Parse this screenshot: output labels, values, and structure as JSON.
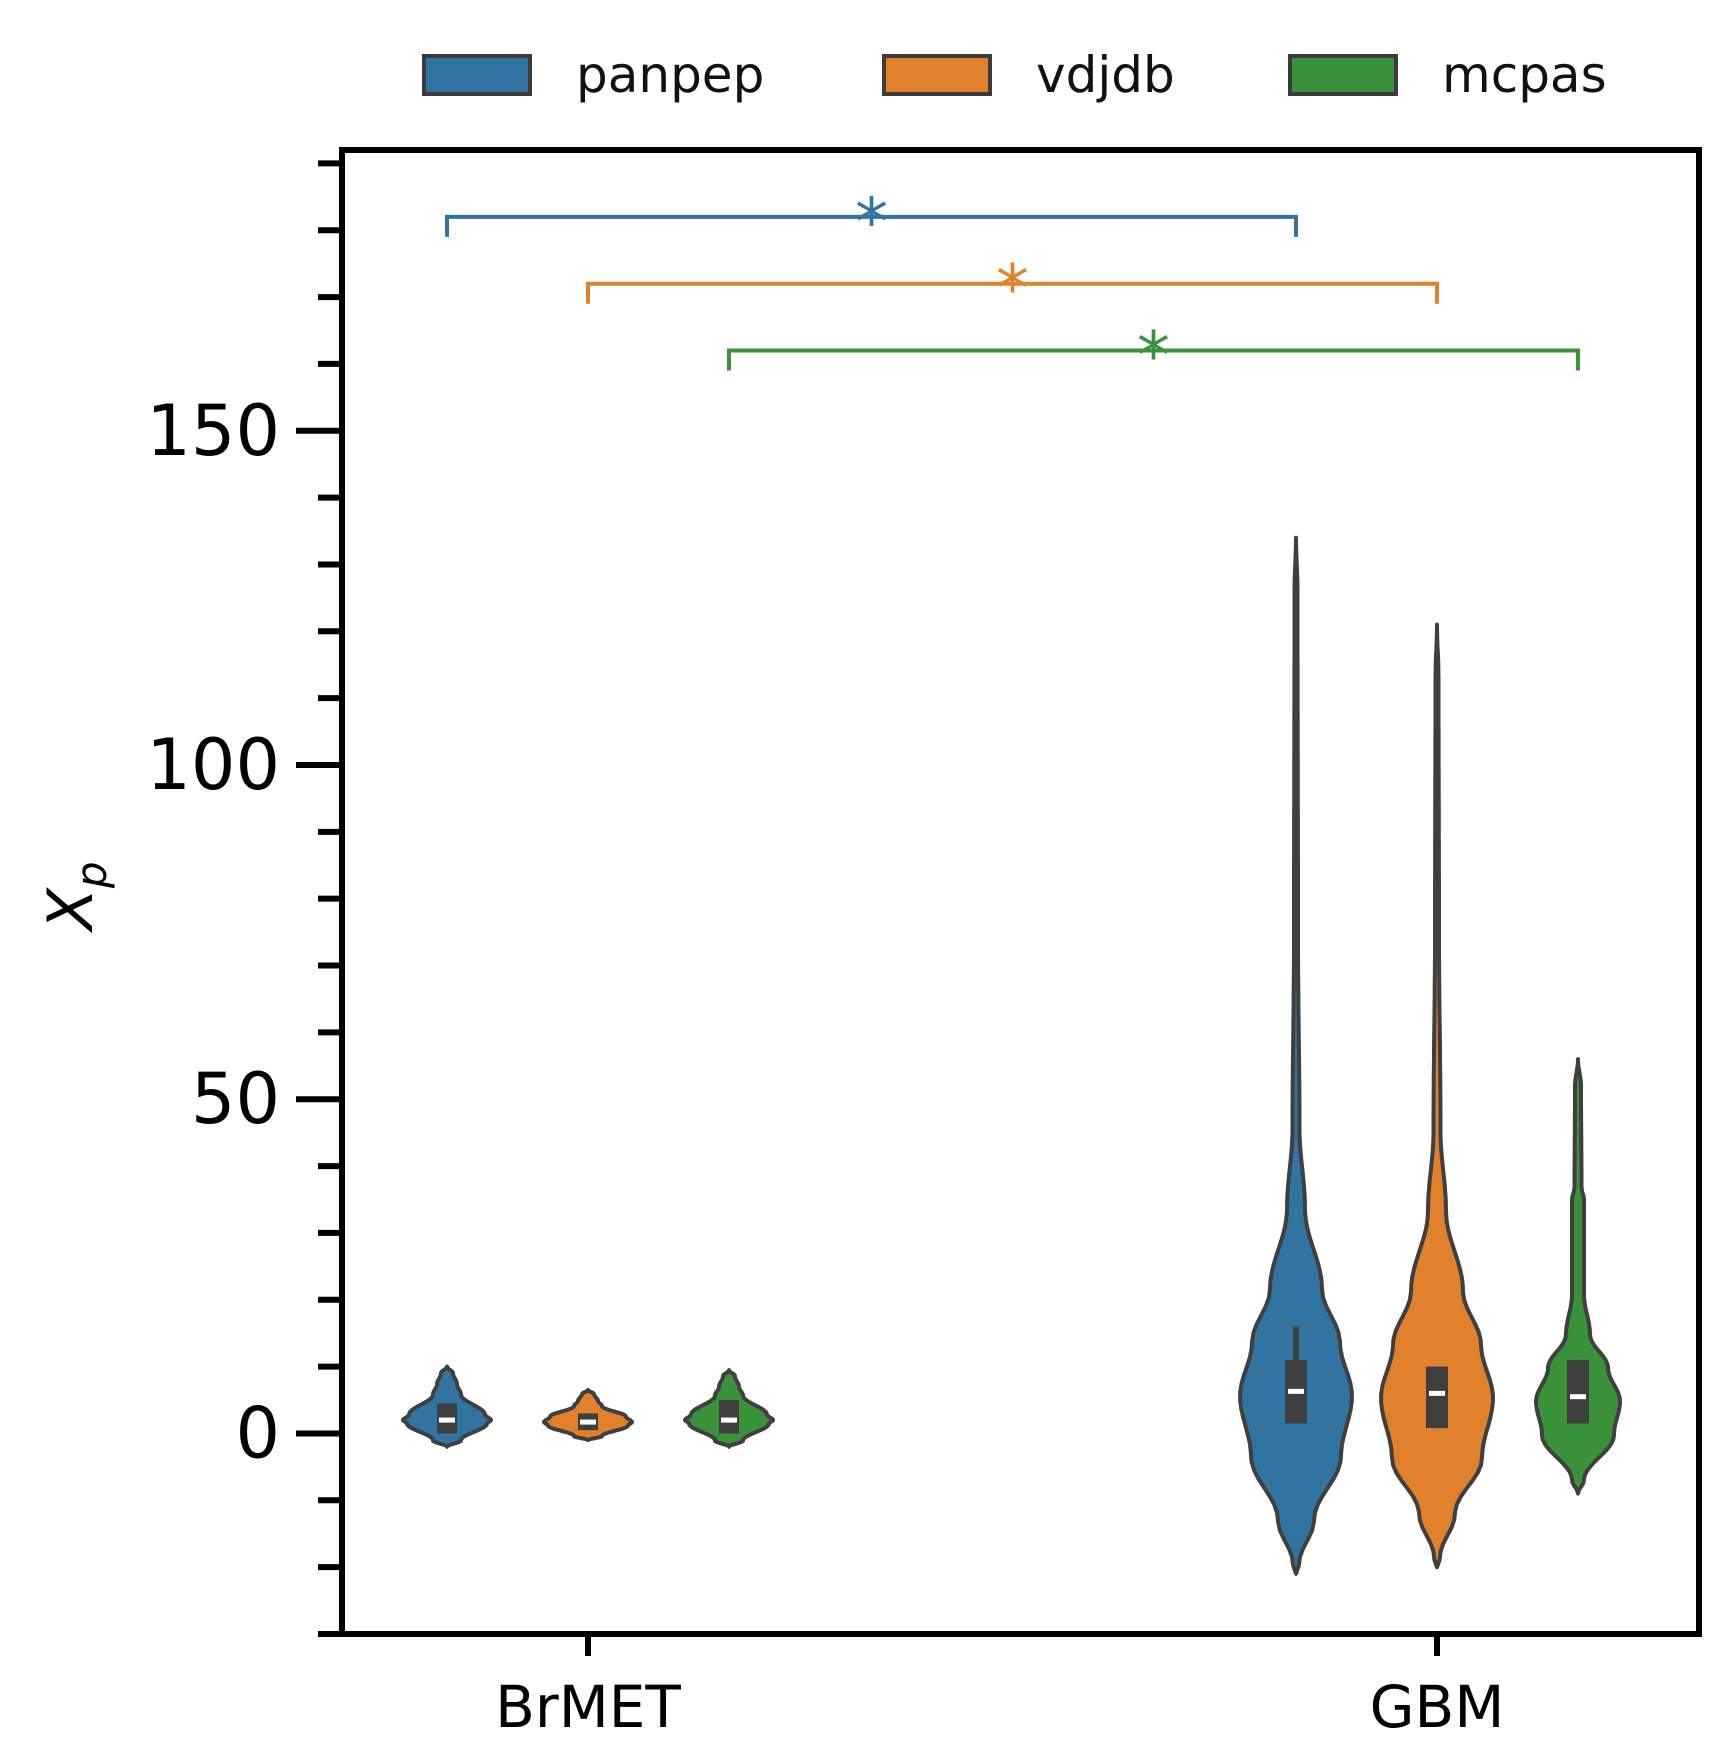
{
  "chart_data": {
    "type": "violin",
    "categories": [
      "BrMET",
      "GBM"
    ],
    "ylabel_main": "X",
    "ylabel_sub": "p",
    "ylim": [
      -30,
      192
    ],
    "yticks_major": [
      0,
      50,
      100,
      150
    ],
    "yticks_major_labels": [
      "0",
      "50",
      "100",
      "150"
    ],
    "yticks_minor_step": 10,
    "legend": {
      "placement": "top",
      "entries": [
        "panpep",
        "vdjdb",
        "mcpas"
      ]
    },
    "series": [
      {
        "name": "panpep",
        "color": "#3274a1",
        "groups": [
          {
            "category": "BrMET",
            "min": -2,
            "max": 10,
            "q1": 0,
            "median": 2,
            "q3": 4.5,
            "whisker_low": 0,
            "whisker_high": 4.5
          },
          {
            "category": "GBM",
            "min": -21,
            "max": 134,
            "q1": 1.5,
            "median": 6.3,
            "q3": 11,
            "whisker_low": 1.5,
            "whisker_high": 16
          }
        ]
      },
      {
        "name": "vdjdb",
        "color": "#e1812c",
        "groups": [
          {
            "category": "BrMET",
            "min": -1,
            "max": 6.5,
            "q1": 0.5,
            "median": 1.7,
            "q3": 3,
            "whisker_low": 0.5,
            "whisker_high": 3
          },
          {
            "category": "GBM",
            "min": -20,
            "max": 121,
            "q1": 0.8,
            "median": 6,
            "q3": 10,
            "whisker_low": 0.8,
            "whisker_high": 10
          }
        ]
      },
      {
        "name": "mcpas",
        "color": "#3a923a",
        "groups": [
          {
            "category": "BrMET",
            "min": -2,
            "max": 9.5,
            "q1": 0,
            "median": 2,
            "q3": 5,
            "whisker_low": 0,
            "whisker_high": 5
          },
          {
            "category": "GBM",
            "min": -9,
            "max": 56,
            "q1": 1.5,
            "median": 5.5,
            "q3": 11,
            "whisker_low": 1.5,
            "whisker_high": 11
          }
        ]
      }
    ],
    "significance": [
      {
        "series": "panpep",
        "label": "*",
        "y": 182,
        "from": "BrMET",
        "to": "GBM"
      },
      {
        "series": "vdjdb",
        "label": "*",
        "y": 172,
        "from": "BrMET",
        "to": "GBM"
      },
      {
        "series": "mcpas",
        "label": "*",
        "y": 162,
        "from": "BrMET",
        "to": "GBM"
      }
    ]
  }
}
